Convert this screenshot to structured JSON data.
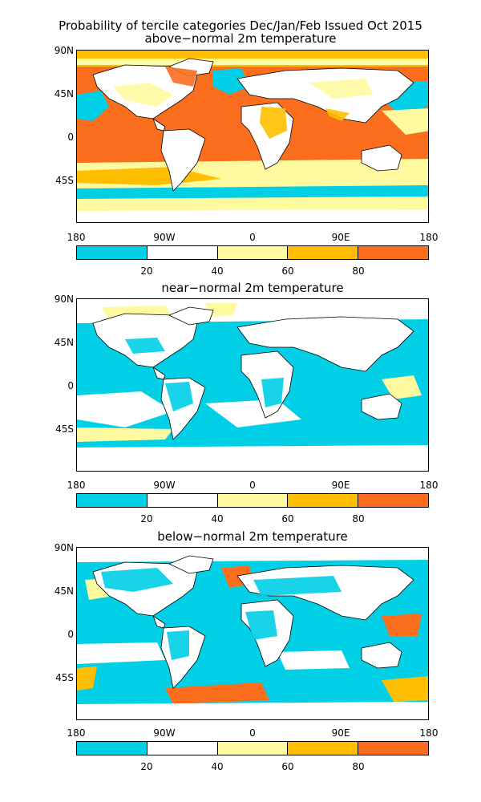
{
  "title": {
    "line1": "Probability of tercile categories Dec/Jan/Feb Issued Oct 2015",
    "line2": "above−normal 2m temperature"
  },
  "panels": [
    {
      "id": "above",
      "title": "above−normal 2m temperature"
    },
    {
      "id": "near",
      "title": "near−normal 2m temperature"
    },
    {
      "id": "below",
      "title": "below−normal 2m temperature"
    }
  ],
  "axes": {
    "lat_labels": [
      "90N",
      "45N",
      "0",
      "45S"
    ],
    "lon_labels": [
      "180",
      "90W",
      "0",
      "90E",
      "180"
    ]
  },
  "colorbar": {
    "labels": [
      "20",
      "40",
      "60",
      "80"
    ],
    "colors": [
      "#00cfe6",
      "#ffffff",
      "#fffaa0",
      "#ffbf00",
      "#fa6e1e"
    ]
  },
  "colors": {
    "ocean_above": "#fa6e1e",
    "land": "#ffffff",
    "coast": "#000000"
  }
}
